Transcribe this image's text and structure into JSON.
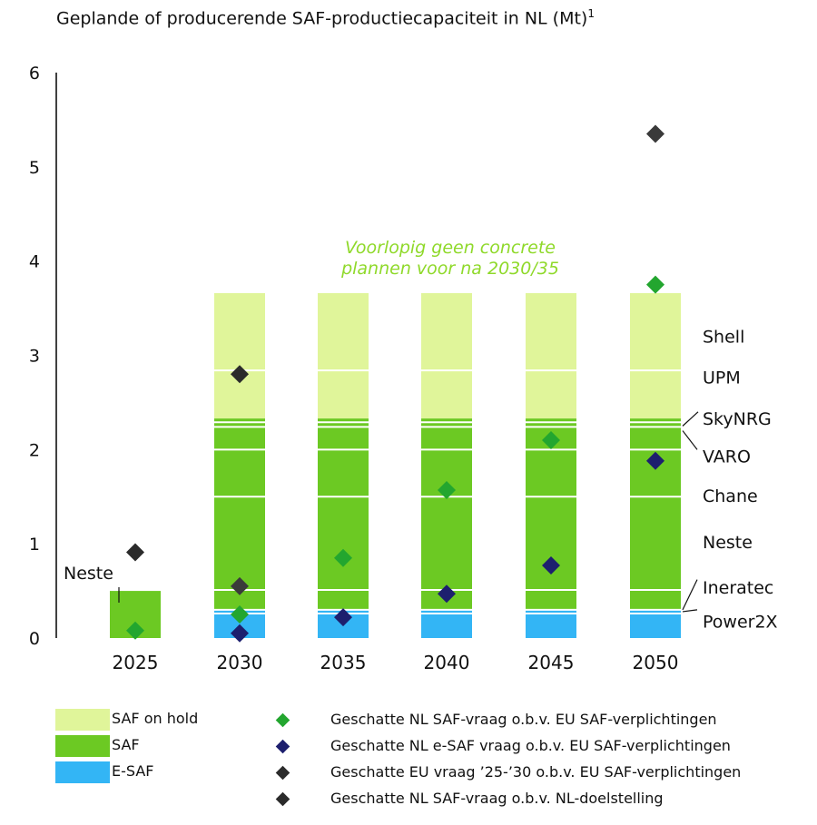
{
  "chart_data": {
    "type": "bar",
    "title": "Geplande of producerende SAF-productiecapaciteit in NL (Mt)",
    "title_footnote": "1",
    "categories": [
      "2025",
      "2030",
      "2035",
      "2040",
      "2045",
      "2050"
    ],
    "ylim": [
      0,
      6
    ],
    "yticks": [
      "0",
      "1",
      "2",
      "3",
      "4",
      "5",
      "6"
    ],
    "grid": false,
    "bar_series": [
      {
        "name": "E-SAF",
        "color": "#33b5f5",
        "values": [
          0,
          0.3,
          0.3,
          0.3,
          0.3,
          0.3
        ]
      },
      {
        "name": "SAF",
        "color": "#6cc923",
        "values": [
          0.5,
          2.03,
          2.03,
          2.03,
          2.03,
          2.03
        ]
      },
      {
        "name": "SAF on hold",
        "color": "#e0f59a",
        "values": [
          0,
          1.33,
          1.33,
          1.33,
          1.33,
          1.33
        ]
      }
    ],
    "segment_dividers": [
      0.26,
      0.3,
      0.51,
      1.5,
      2.0,
      2.24,
      2.29,
      2.84
    ],
    "point_series": [
      {
        "name": "Geschatte NL SAF-vraag o.b.v. EU SAF-verplichtingen",
        "color": "#23a62f",
        "values": [
          0.08,
          0.25,
          0.85,
          1.57,
          2.1,
          3.75
        ]
      },
      {
        "name": "Geschatte NL e-SAF vraag o.b.v. EU SAF-verplichtingen",
        "color": "#1d1f6e",
        "values": [
          null,
          0.05,
          0.22,
          0.47,
          0.77,
          1.88
        ]
      },
      {
        "name": "Geschatte EU vraag ’25-’30 o.b.v. EU SAF-verplichtingen",
        "color": "#2b2b2b",
        "values": [
          0.91,
          2.8,
          null,
          null,
          null,
          null
        ]
      },
      {
        "name": "Geschatte NL SAF-vraag o.b.v. NL-doelstelling",
        "color": "#3a3a3a",
        "values": [
          null,
          0.55,
          null,
          null,
          null,
          5.35
        ]
      }
    ],
    "company_labels": [
      {
        "text": "Shell",
        "y": 3.2
      },
      {
        "text": "UPM",
        "y": 2.77
      },
      {
        "text": "SkyNRG",
        "y": 2.33
      },
      {
        "text": "VARO",
        "y": 1.93
      },
      {
        "text": "Chane",
        "y": 1.51
      },
      {
        "text": "Neste",
        "y": 1.02
      },
      {
        "text": "Ineratec",
        "y": 0.54
      },
      {
        "text": "Power2X",
        "y": 0.18
      }
    ],
    "annotations": [
      {
        "text": "Voorlopig geen concrete",
        "color": "#8fd92a"
      },
      {
        "text": "plannen voor na 2030/35",
        "color": "#8fd92a"
      },
      {
        "text": "Neste",
        "color": "#111111"
      }
    ]
  },
  "legend": [
    {
      "kind": "swatch",
      "label": "SAF on hold",
      "color": "#e0f59a"
    },
    {
      "kind": "swatch",
      "label": "SAF",
      "color": "#6cc923"
    },
    {
      "kind": "swatch",
      "label": "E-SAF",
      "color": "#33b5f5"
    },
    {
      "kind": "diamond",
      "label": "Geschatte NL SAF-vraag o.b.v. EU SAF-verplichtingen",
      "color": "#23a62f"
    },
    {
      "kind": "diamond",
      "label": "Geschatte NL e-SAF vraag o.b.v. EU SAF-verplichtingen",
      "color": "#1d1f6e"
    },
    {
      "kind": "diamond",
      "label": "Geschatte EU vraag ’25-’30 o.b.v. EU SAF-verplichtingen",
      "color": "#2b2b2b"
    },
    {
      "kind": "diamond",
      "label": "Geschatte NL SAF-vraag o.b.v. NL-doelstelling",
      "color": "#2b2b2b"
    }
  ]
}
